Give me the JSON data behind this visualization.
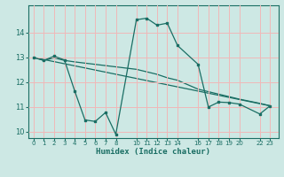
{
  "xlabel": "Humidex (Indice chaleur)",
  "background_color": "#cde8e4",
  "grid_color": "#f0b8b8",
  "line_color": "#1a6e64",
  "line1_x": [
    0,
    1,
    2,
    3,
    4,
    5,
    6,
    7,
    8,
    10,
    11,
    12,
    13,
    14,
    16,
    17,
    18,
    19,
    20,
    22,
    23
  ],
  "line1_y": [
    13.0,
    12.88,
    13.05,
    12.9,
    11.65,
    10.48,
    10.42,
    10.78,
    9.9,
    14.52,
    14.58,
    14.3,
    14.38,
    13.48,
    12.72,
    11.0,
    11.2,
    11.18,
    11.12,
    10.72,
    11.05
  ],
  "line2_x": [
    0,
    1,
    2,
    3,
    4,
    10,
    11,
    12,
    13,
    14,
    16,
    17,
    18,
    19,
    20,
    22,
    23
  ],
  "line2_y": [
    13.0,
    12.88,
    12.98,
    12.88,
    12.82,
    12.52,
    12.42,
    12.32,
    12.18,
    12.08,
    11.72,
    11.62,
    11.52,
    11.42,
    11.32,
    11.15,
    11.05
  ],
  "line3_x": [
    0,
    23
  ],
  "line3_y": [
    13.0,
    11.05
  ],
  "ylim": [
    9.75,
    15.1
  ],
  "xlim": [
    -0.5,
    23.8
  ],
  "yticks": [
    10,
    11,
    12,
    13,
    14
  ],
  "xticks": [
    0,
    1,
    2,
    3,
    4,
    5,
    6,
    7,
    8,
    10,
    11,
    12,
    13,
    14,
    16,
    17,
    18,
    19,
    20,
    22,
    23
  ]
}
